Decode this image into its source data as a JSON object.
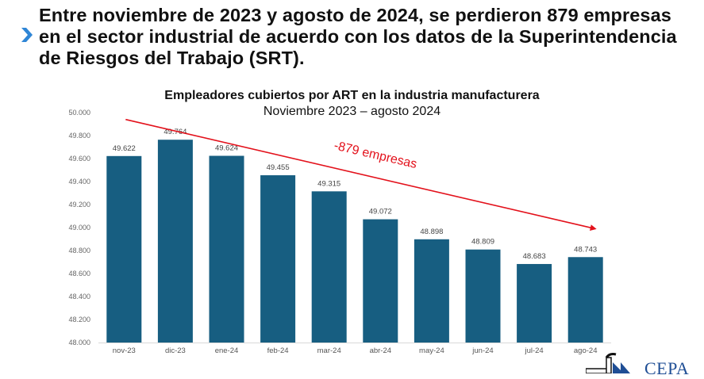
{
  "headline": {
    "icon": "chevron-right-icon",
    "text": "Entre noviembre de 2023 y agosto de 2024, se perdieron 879 empresas en el sector industrial de acuerdo con los datos de la Superintendencia de Riesgos del Trabajo (SRT).",
    "accent_color": "#2f86d6"
  },
  "logo": {
    "text": "CEPA",
    "color": "#1f4e95"
  },
  "chart_data": {
    "type": "bar",
    "title": "Empleadores cubiertos por ART en la industria manufacturera",
    "subtitle": "Noviembre 2023 – agosto 2024",
    "xlabel": "",
    "ylabel": "",
    "categories": [
      "nov-23",
      "dic-23",
      "ene-24",
      "feb-24",
      "mar-24",
      "abr-24",
      "may-24",
      "jun-24",
      "jul-24",
      "ago-24"
    ],
    "values": [
      49622,
      49764,
      49624,
      49455,
      49315,
      49072,
      48898,
      48809,
      48683,
      48743
    ],
    "value_labels": [
      "49.622",
      "49.764",
      "49.624",
      "49.455",
      "49.315",
      "49.072",
      "48.898",
      "48.809",
      "48.683",
      "48.743"
    ],
    "ylim": [
      48000,
      50000
    ],
    "yticks": [
      48000,
      48200,
      48400,
      48600,
      48800,
      49000,
      49200,
      49400,
      49600,
      49800,
      50000
    ],
    "ytick_labels": [
      "48.000",
      "48.200",
      "48.400",
      "48.600",
      "48.800",
      "49.000",
      "49.200",
      "49.400",
      "49.600",
      "49.800",
      "50.000"
    ],
    "grid": false,
    "legend": "none",
    "bar_color": "#175e81",
    "annotation": {
      "text": "-879 empresas",
      "color": "#e3111b",
      "arrow_from_category": "nov-23",
      "arrow_to_category": "ago-24"
    }
  }
}
